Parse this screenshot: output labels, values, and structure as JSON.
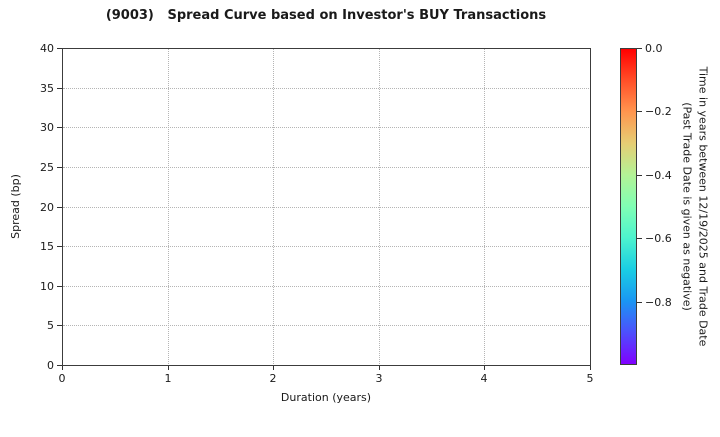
{
  "title": "(9003)   Spread Curve based on Investor's BUY Transactions",
  "chart_data": {
    "type": "scatter",
    "title": "(9003)   Spread Curve based on Investor's BUY Transactions",
    "xlabel": "Duration (years)",
    "ylabel": "Spread (bp)",
    "xlim": [
      0,
      5
    ],
    "ylim": [
      0,
      40
    ],
    "xticks": [
      0,
      1,
      2,
      3,
      4,
      5
    ],
    "xtick_labels": [
      "0",
      "1",
      "2",
      "3",
      "4",
      "5"
    ],
    "yticks": [
      0,
      5,
      10,
      15,
      20,
      25,
      30,
      35,
      40
    ],
    "ytick_labels": [
      "0",
      "5",
      "10",
      "15",
      "20",
      "25",
      "30",
      "35",
      "40"
    ],
    "grid": "dotted",
    "points": [],
    "note": "plot area contains no data points",
    "colorbar": {
      "label_line1": "Time in years between 12/19/2025 and Trade Date",
      "label_line2": "(Past Trade Date is given as negative)",
      "tick_labels": [
        "0.0",
        "−0.2",
        "−0.4",
        "−0.6",
        "−0.8"
      ],
      "tick_values": [
        0.0,
        -0.2,
        -0.4,
        -0.6,
        -0.8
      ],
      "range_top_to_bottom": [
        0.0,
        -1.0
      ],
      "colormap": "rainbow (red at 0.0 descending to violet at -1.0)",
      "gradient_stops": [
        {
          "pos": 0,
          "color": "#ff0000"
        },
        {
          "pos": 10,
          "color": "#ff4f28"
        },
        {
          "pos": 20,
          "color": "#ff964f"
        },
        {
          "pos": 30,
          "color": "#e6ce74"
        },
        {
          "pos": 40,
          "color": "#b3f396"
        },
        {
          "pos": 50,
          "color": "#80ffb4"
        },
        {
          "pos": 60,
          "color": "#4df3ce"
        },
        {
          "pos": 70,
          "color": "#1acee3"
        },
        {
          "pos": 80,
          "color": "#1a96f3"
        },
        {
          "pos": 90,
          "color": "#4d4ffc"
        },
        {
          "pos": 100,
          "color": "#8000ff"
        }
      ]
    },
    "colors": {
      "text": "#1a1a1a",
      "spine": "#3c3c3c",
      "grid": "#b5b5b5",
      "background": "#ffffff"
    }
  }
}
